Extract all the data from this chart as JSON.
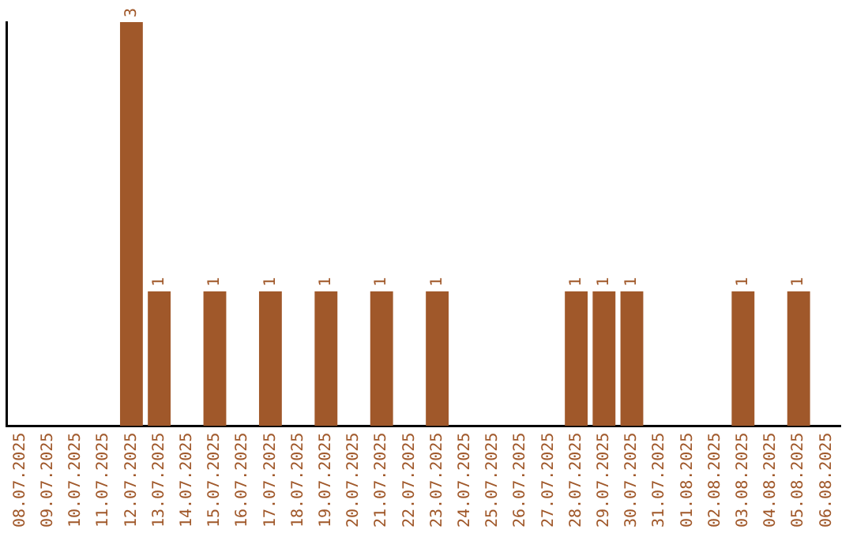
{
  "chart_data": {
    "type": "bar",
    "categories": [
      "08.07.2025",
      "09.07.2025",
      "10.07.2025",
      "11.07.2025",
      "12.07.2025",
      "13.07.2025",
      "14.07.2025",
      "15.07.2025",
      "16.07.2025",
      "17.07.2025",
      "18.07.2025",
      "19.07.2025",
      "20.07.2025",
      "21.07.2025",
      "22.07.2025",
      "23.07.2025",
      "24.07.2025",
      "25.07.2025",
      "26.07.2025",
      "27.07.2025",
      "28.07.2025",
      "29.07.2025",
      "30.07.2025",
      "31.07.2025",
      "01.08.2025",
      "02.08.2025",
      "03.08.2025",
      "04.08.2025",
      "05.08.2025",
      "06.08.2025"
    ],
    "values": [
      null,
      null,
      null,
      null,
      3,
      1,
      null,
      1,
      null,
      1,
      null,
      1,
      null,
      1,
      null,
      1,
      null,
      null,
      null,
      null,
      1,
      1,
      1,
      null,
      null,
      null,
      1,
      null,
      1,
      null
    ],
    "color": "#a0582a",
    "data_labels": true,
    "grid": false,
    "legend": false,
    "tick_labels": "x"
  }
}
